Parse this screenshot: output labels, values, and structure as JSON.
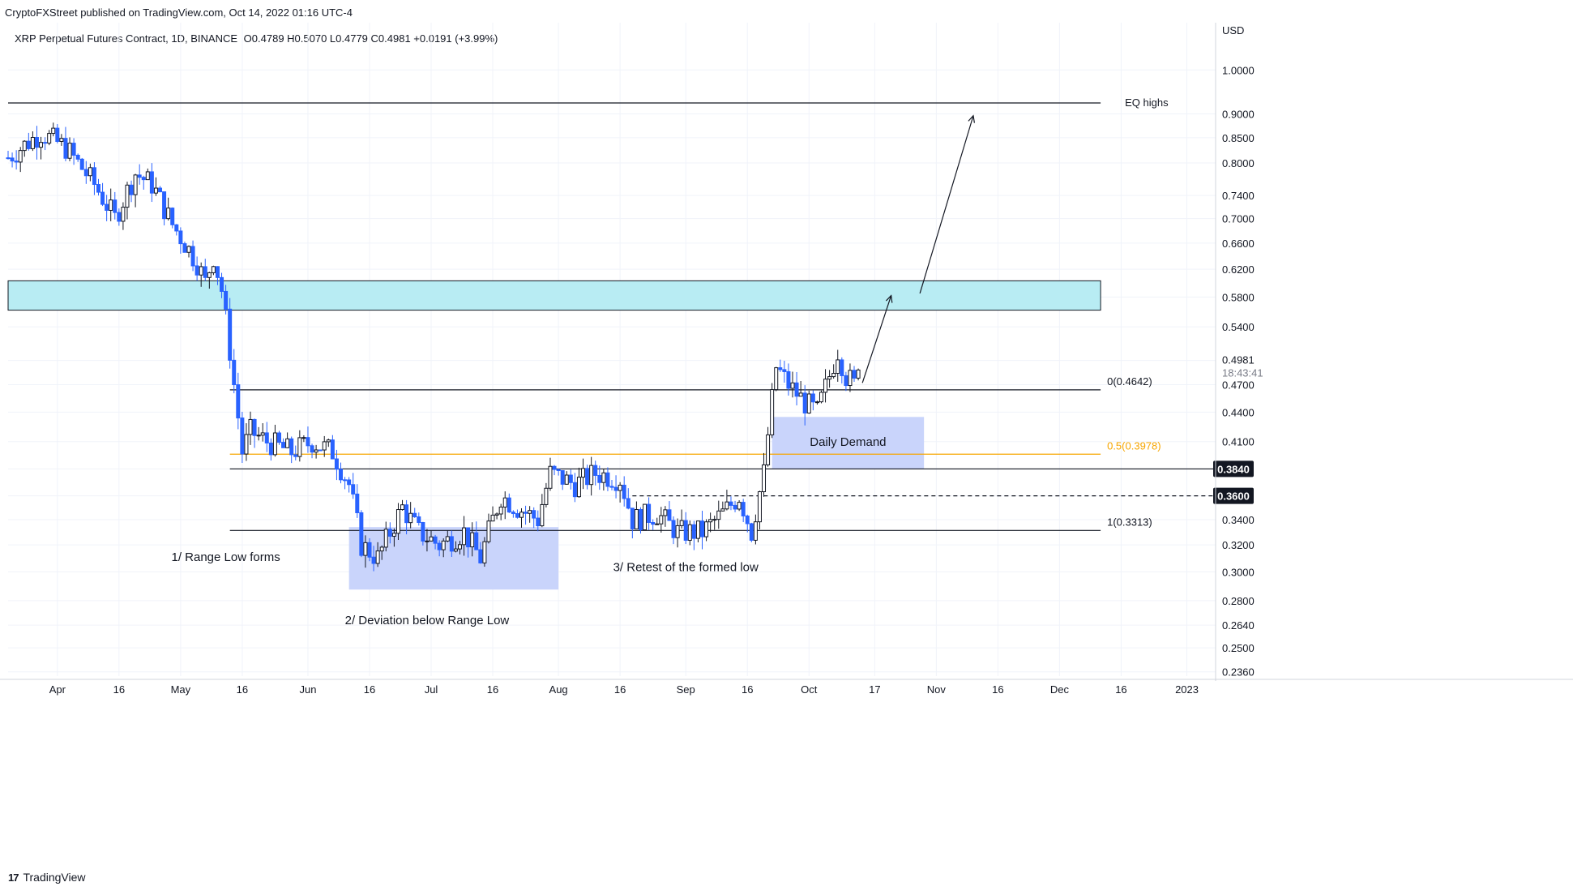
{
  "header": {
    "published_by": "CryptoFXStreet published on TradingView.com, Oct 14, 2022 01:16 UTC-4"
  },
  "symbol": {
    "name": "XRP Perpetual Futures Contract, 1D, BINANCE",
    "ohlc": "O0.4789  H0.5070  L0.4779  C0.4981  +0.0191 (+3.99%)"
  },
  "footer": {
    "brand": "TradingView"
  },
  "chart_data": {
    "type": "candlestick",
    "title": "XRP Perpetual Futures Contract, 1D, BINANCE",
    "currency": "USD",
    "log_scale": true,
    "ylim": [
      0.2336,
      1.12
    ],
    "y_ticks": [
      0.236,
      0.25,
      0.264,
      0.28,
      0.3,
      0.32,
      0.34,
      0.36,
      0.384,
      0.41,
      0.44,
      0.47,
      0.4981,
      0.54,
      0.58,
      0.62,
      0.66,
      0.7,
      0.74,
      0.8,
      0.85,
      0.9,
      1.0
    ],
    "y_tick_labels": [
      "0.2360",
      "0.2500",
      "0.2640",
      "0.2800",
      "0.3000",
      "0.3200",
      "0.3400",
      "0.3600",
      "0.3840",
      "0.4100",
      "0.4400",
      "0.4700",
      "0.4981",
      "0.5400",
      "0.5800",
      "0.6200",
      "0.6600",
      "0.7000",
      "0.7400",
      "0.8000",
      "0.8500",
      "0.9000",
      "1.0000"
    ],
    "x_range": [
      "2022-03-20",
      "2023-01-08"
    ],
    "x_ticks": [
      {
        "date": "2022-04-01",
        "label": "Apr"
      },
      {
        "date": "2022-04-16",
        "label": "16"
      },
      {
        "date": "2022-05-01",
        "label": "May"
      },
      {
        "date": "2022-05-16",
        "label": "16"
      },
      {
        "date": "2022-06-01",
        "label": "Jun"
      },
      {
        "date": "2022-06-16",
        "label": "16"
      },
      {
        "date": "2022-07-01",
        "label": "Jul"
      },
      {
        "date": "2022-07-16",
        "label": "16"
      },
      {
        "date": "2022-08-01",
        "label": "Aug"
      },
      {
        "date": "2022-08-16",
        "label": "16"
      },
      {
        "date": "2022-09-01",
        "label": "Sep"
      },
      {
        "date": "2022-09-16",
        "label": "16"
      },
      {
        "date": "2022-10-01",
        "label": "Oct"
      },
      {
        "date": "2022-10-17",
        "label": "17"
      },
      {
        "date": "2022-11-01",
        "label": "Nov"
      },
      {
        "date": "2022-11-16",
        "label": "16"
      },
      {
        "date": "2022-12-01",
        "label": "Dec"
      },
      {
        "date": "2022-12-16",
        "label": "16"
      },
      {
        "date": "2023-01-01",
        "label": "2023"
      }
    ],
    "price_anchors": [
      {
        "date": "2022-03-20",
        "price": 0.81
      },
      {
        "date": "2022-03-28",
        "price": 0.86
      },
      {
        "date": "2022-04-03",
        "price": 0.83
      },
      {
        "date": "2022-04-10",
        "price": 0.76
      },
      {
        "date": "2022-04-15",
        "price": 0.7
      },
      {
        "date": "2022-04-20",
        "price": 0.78
      },
      {
        "date": "2022-04-24",
        "price": 0.76
      },
      {
        "date": "2022-04-29",
        "price": 0.69
      },
      {
        "date": "2022-05-05",
        "price": 0.63
      },
      {
        "date": "2022-05-07",
        "price": 0.6
      },
      {
        "date": "2022-05-09",
        "price": 0.64
      },
      {
        "date": "2022-05-11",
        "price": 0.59
      },
      {
        "date": "2022-05-14",
        "price": 0.47
      },
      {
        "date": "2022-05-16",
        "price": 0.4
      },
      {
        "date": "2022-05-18",
        "price": 0.42
      },
      {
        "date": "2022-05-22",
        "price": 0.41
      },
      {
        "date": "2022-05-28",
        "price": 0.4
      },
      {
        "date": "2022-06-02",
        "price": 0.41
      },
      {
        "date": "2022-06-07",
        "price": 0.4
      },
      {
        "date": "2022-06-11",
        "price": 0.37
      },
      {
        "date": "2022-06-14",
        "price": 0.32
      },
      {
        "date": "2022-06-18",
        "price": 0.31
      },
      {
        "date": "2022-06-24",
        "price": 0.35
      },
      {
        "date": "2022-06-28",
        "price": 0.33
      },
      {
        "date": "2022-07-03",
        "price": 0.32
      },
      {
        "date": "2022-07-09",
        "price": 0.33
      },
      {
        "date": "2022-07-13",
        "price": 0.31
      },
      {
        "date": "2022-07-18",
        "price": 0.36
      },
      {
        "date": "2022-07-22",
        "price": 0.35
      },
      {
        "date": "2022-07-27",
        "price": 0.34
      },
      {
        "date": "2022-07-30",
        "price": 0.38
      },
      {
        "date": "2022-08-05",
        "price": 0.37
      },
      {
        "date": "2022-08-10",
        "price": 0.38
      },
      {
        "date": "2022-08-16",
        "price": 0.375
      },
      {
        "date": "2022-08-19",
        "price": 0.34
      },
      {
        "date": "2022-08-25",
        "price": 0.345
      },
      {
        "date": "2022-08-30",
        "price": 0.33
      },
      {
        "date": "2022-09-05",
        "price": 0.33
      },
      {
        "date": "2022-09-10",
        "price": 0.345
      },
      {
        "date": "2022-09-14",
        "price": 0.36
      },
      {
        "date": "2022-09-17",
        "price": 0.33
      },
      {
        "date": "2022-09-20",
        "price": 0.38
      },
      {
        "date": "2022-09-23",
        "price": 0.49
      },
      {
        "date": "2022-09-26",
        "price": 0.47
      },
      {
        "date": "2022-09-30",
        "price": 0.45
      },
      {
        "date": "2022-10-03",
        "price": 0.44
      },
      {
        "date": "2022-10-06",
        "price": 0.48
      },
      {
        "date": "2022-10-08",
        "price": 0.51
      },
      {
        "date": "2022-10-10",
        "price": 0.48
      },
      {
        "date": "2022-10-12",
        "price": 0.47
      },
      {
        "date": "2022-10-13",
        "price": 0.4981
      }
    ],
    "last_price": {
      "value": 0.4981,
      "label": "0.4981",
      "countdown": "18:43:41"
    },
    "levels": [
      {
        "name": "EQ highs",
        "value": 0.9238,
        "style": "solid",
        "label": "EQ highs"
      },
      {
        "name": "fib-0",
        "value": 0.4642,
        "style": "solid",
        "label": "0(0.4642)"
      },
      {
        "name": "fib-0.5",
        "value": 0.3978,
        "style": "solid-orange",
        "label": "0.5(0.3978)"
      },
      {
        "name": "range-line",
        "value": 0.384,
        "style": "solid",
        "label": "0.3840"
      },
      {
        "name": "dashed-level",
        "value": 0.36,
        "style": "dashed",
        "label": "0.3600"
      },
      {
        "name": "fib-1",
        "value": 0.3313,
        "style": "solid",
        "label": "1(0.3313)"
      }
    ],
    "zones": [
      {
        "name": "supply-zone",
        "from": "2022-03-20",
        "to": "2022-12-11",
        "low": 0.562,
        "high": 0.603,
        "color": "#b8ecf3"
      },
      {
        "name": "deviation-zone",
        "from": "2022-06-11",
        "to": "2022-08-01",
        "low": 0.2875,
        "high": 0.334,
        "color": "#c9d4fb"
      },
      {
        "name": "daily-demand",
        "from": "2022-09-22",
        "to": "2022-10-29",
        "low": 0.384,
        "high": 0.435,
        "color": "#c9d4fb",
        "label": "Daily Demand"
      }
    ],
    "annotations": [
      {
        "text": "1/ Range Low forms",
        "date": "2022-05-12",
        "price": 0.308
      },
      {
        "text": "2/ Deviation below Range Low",
        "date": "2022-06-30",
        "price": 0.2645
      },
      {
        "text": "3/ Retest of the formed low",
        "date": "2022-09-01",
        "price": 0.3005
      }
    ],
    "projection_arrows": [
      {
        "from": {
          "date": "2022-10-14",
          "price": 0.472
        },
        "to": {
          "date": "2022-10-21",
          "price": 0.582
        }
      },
      {
        "from": {
          "date": "2022-10-28",
          "price": 0.585
        },
        "to": {
          "date": "2022-11-10",
          "price": 0.896
        }
      }
    ],
    "colors": {
      "up": "#131722",
      "down": "#2962ff",
      "fib05": "#f7a600",
      "grid": "#f0f3fa"
    }
  }
}
